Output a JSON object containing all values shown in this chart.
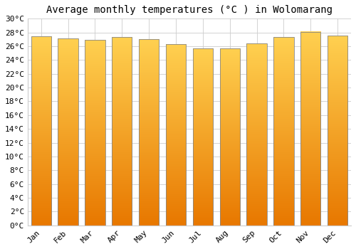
{
  "title": "Average monthly temperatures (°C ) in Wolomarang",
  "months": [
    "Jan",
    "Feb",
    "Mar",
    "Apr",
    "May",
    "Jun",
    "Jul",
    "Aug",
    "Sep",
    "Oct",
    "Nov",
    "Dec"
  ],
  "temperatures": [
    27.4,
    27.1,
    26.9,
    27.3,
    27.0,
    26.3,
    25.7,
    25.7,
    26.4,
    27.3,
    28.1,
    27.5
  ],
  "bar_color_light": "#FFD050",
  "bar_color_dark": "#E87800",
  "bar_edge_color": "#888888",
  "ylim": [
    0,
    30
  ],
  "ytick_step": 2,
  "background_color": "#FFFFFF",
  "grid_color": "#CCCCCC",
  "title_fontsize": 10,
  "tick_fontsize": 8,
  "font_family": "monospace"
}
